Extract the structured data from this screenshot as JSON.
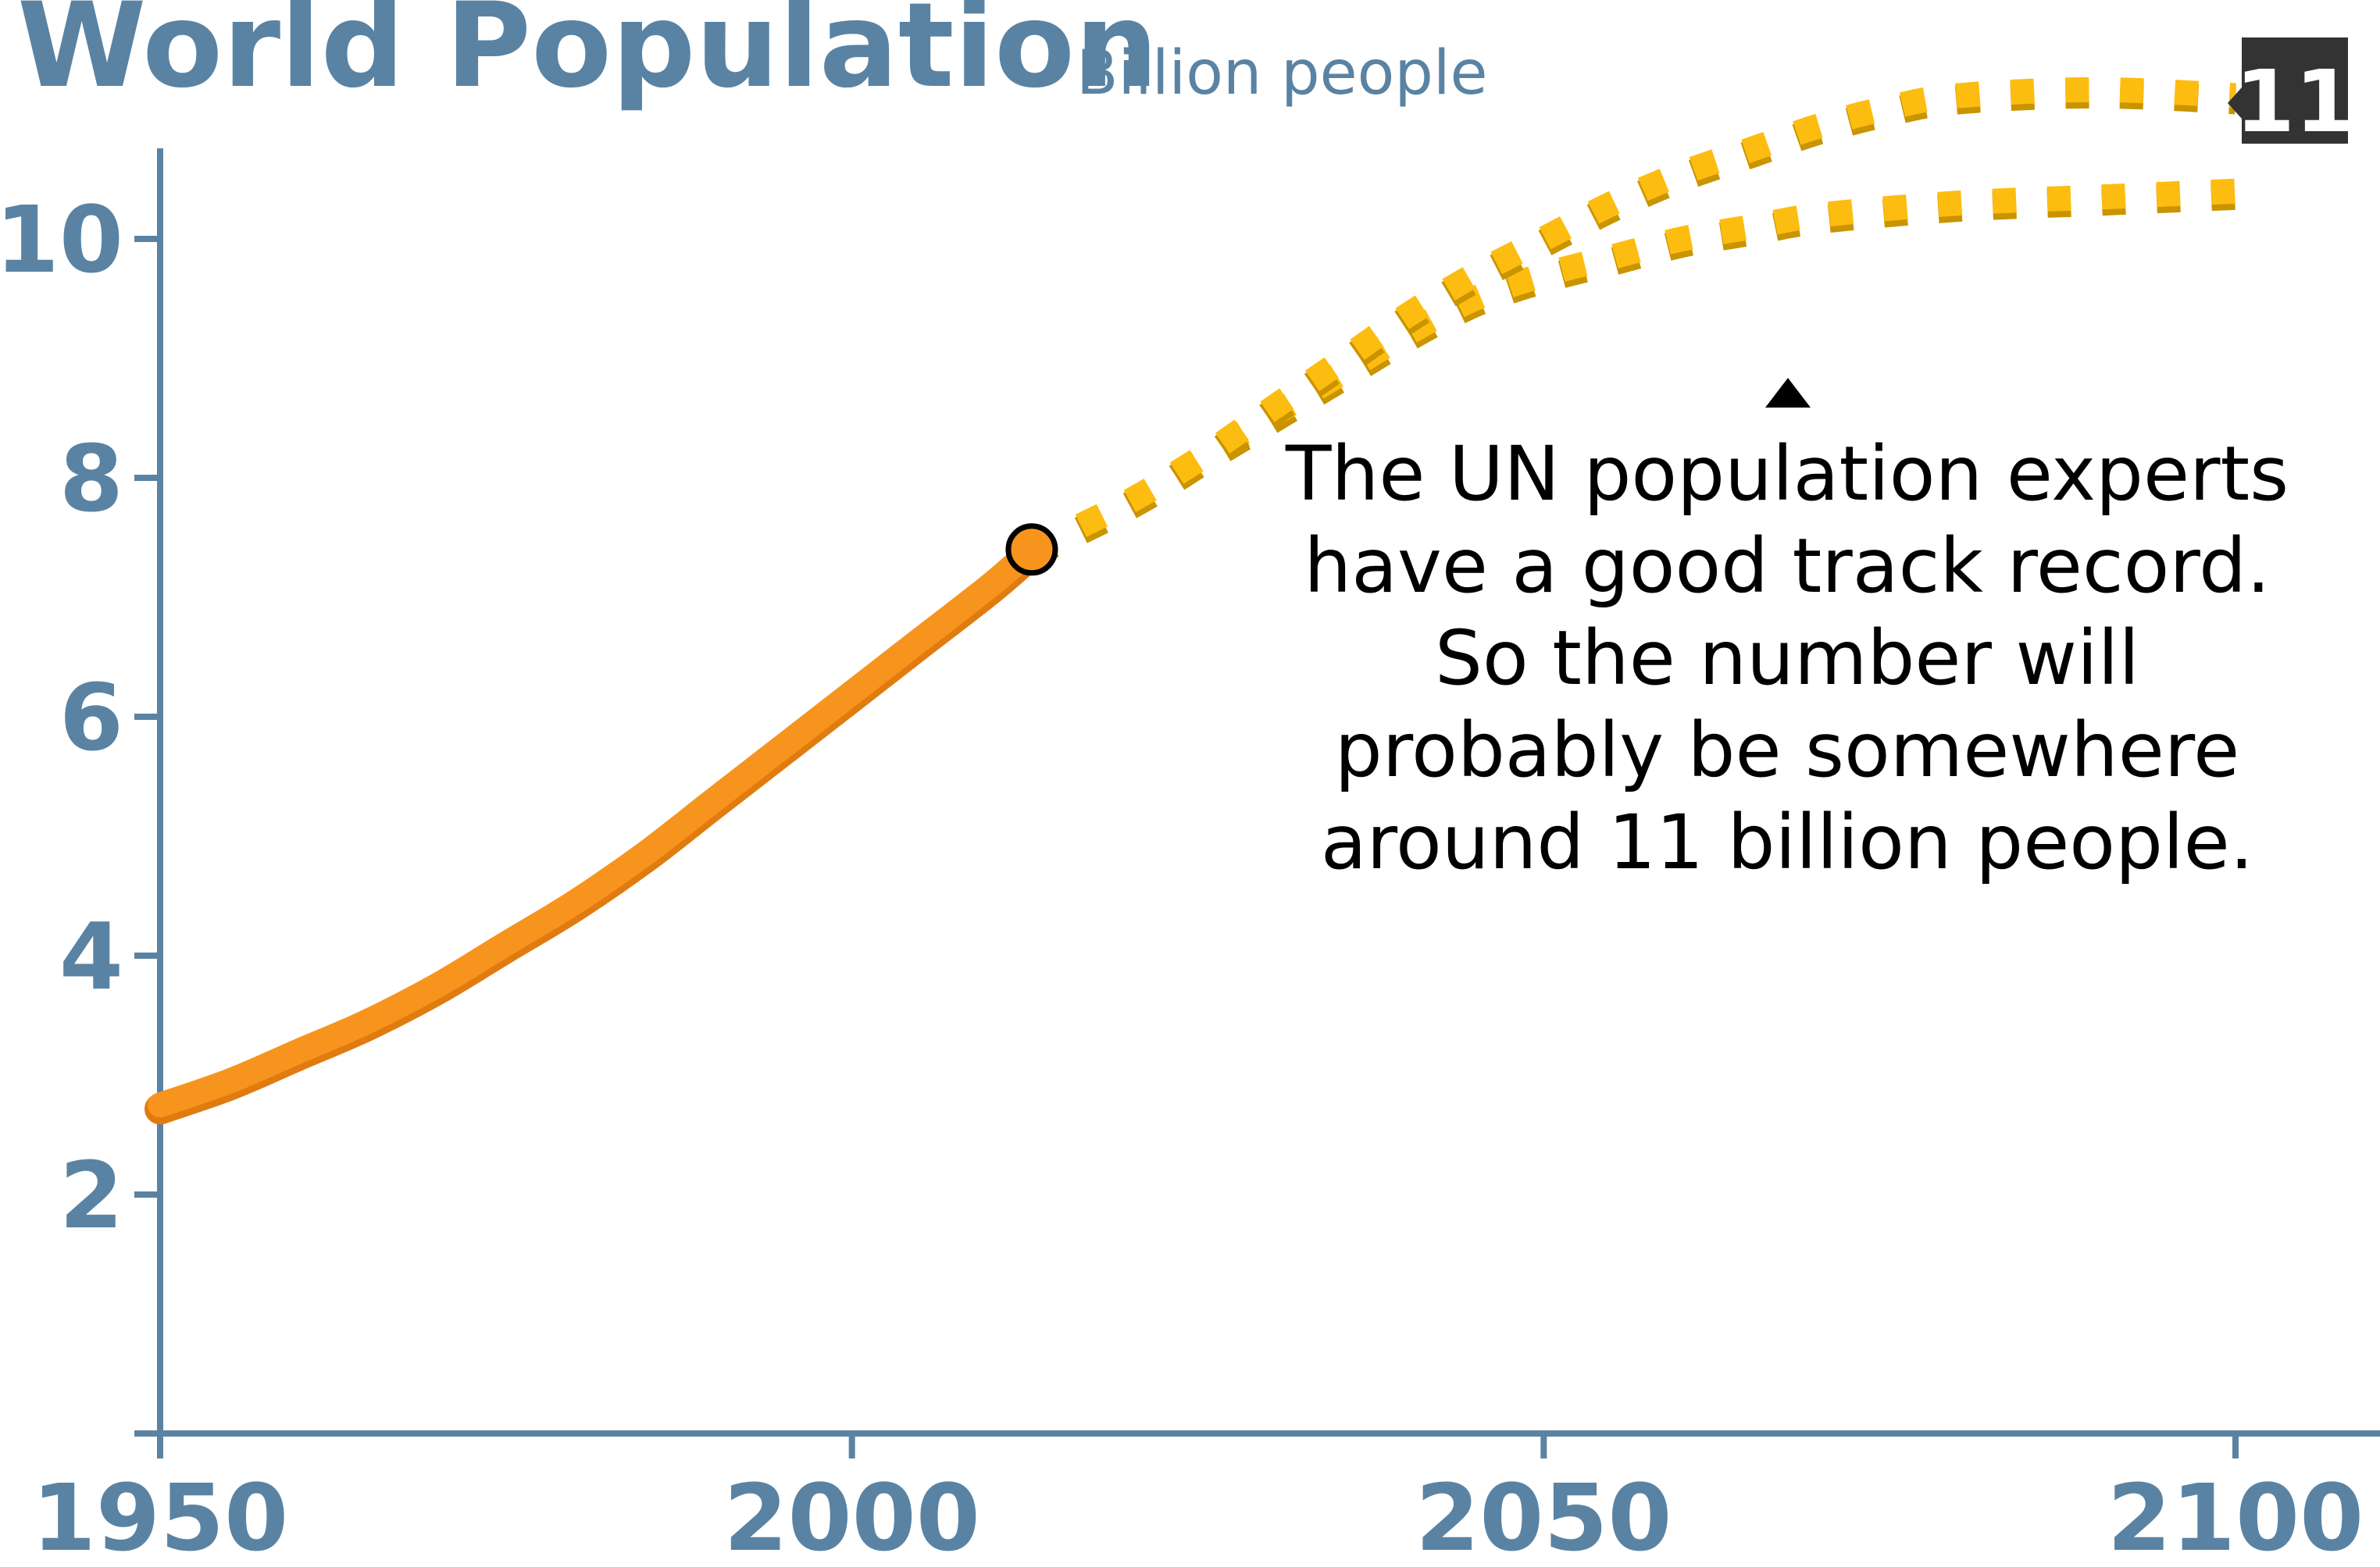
{
  "chart_data": {
    "type": "line",
    "title": "World Population",
    "subtitle": "Billion people",
    "xlabel": "",
    "ylabel": "",
    "xlim": [
      1950,
      2110
    ],
    "ylim": [
      0,
      10.7
    ],
    "x_ticks": [
      1950,
      2000,
      2050,
      2100
    ],
    "y_ticks": [
      2,
      4,
      6,
      8,
      10
    ],
    "grid": false,
    "series": [
      {
        "style": "solid",
        "color": "#f7941d",
        "points": [
          [
            1950,
            2.75
          ],
          [
            1955,
            2.95
          ],
          [
            1960,
            3.2
          ],
          [
            1965,
            3.45
          ],
          [
            1970,
            3.75
          ],
          [
            1975,
            4.1
          ],
          [
            1980,
            4.45
          ],
          [
            1985,
            4.85
          ],
          [
            1990,
            5.3
          ],
          [
            1995,
            5.75
          ],
          [
            2000,
            6.2
          ],
          [
            2005,
            6.65
          ],
          [
            2010,
            7.1
          ],
          [
            2013,
            7.4
          ]
        ]
      },
      {
        "style": "dashed",
        "color": "#fdbd10",
        "points": [
          [
            2013,
            7.4
          ],
          [
            2020,
            7.8
          ],
          [
            2025,
            8.15
          ],
          [
            2030,
            8.5
          ],
          [
            2035,
            8.85
          ],
          [
            2040,
            9.2
          ],
          [
            2045,
            9.5
          ],
          [
            2050,
            9.7
          ],
          [
            2055,
            9.85
          ],
          [
            2060,
            10.0
          ],
          [
            2065,
            10.1
          ],
          [
            2070,
            10.2
          ],
          [
            2080,
            10.3
          ],
          [
            2090,
            10.35
          ],
          [
            2100,
            10.4
          ]
        ]
      },
      {
        "style": "dashed",
        "color": "#fdbd10",
        "points": [
          [
            2013,
            7.4
          ],
          [
            2020,
            7.8
          ],
          [
            2025,
            8.15
          ],
          [
            2030,
            8.55
          ],
          [
            2035,
            8.95
          ],
          [
            2040,
            9.35
          ],
          [
            2045,
            9.7
          ],
          [
            2050,
            10.0
          ],
          [
            2055,
            10.3
          ],
          [
            2060,
            10.55
          ],
          [
            2065,
            10.75
          ],
          [
            2070,
            10.95
          ],
          [
            2075,
            11.1
          ],
          [
            2080,
            11.2
          ],
          [
            2090,
            11.25
          ],
          [
            2100,
            11.2
          ]
        ]
      }
    ],
    "current_point": {
      "x": 2013,
      "y": 7.4
    },
    "end_badge": {
      "label": "11",
      "value": 11
    },
    "annotation": {
      "lines": [
        "The UN population experts",
        "have a good track record.",
        "So the number will",
        "probably be somewhere",
        "around 11 billion people."
      ]
    },
    "colors": {
      "axis": "#5a83a3",
      "history_line": "#f7941d",
      "projection_line": "#fdbd10",
      "badge_bg": "#333333",
      "badge_text": "#ffffff"
    }
  }
}
